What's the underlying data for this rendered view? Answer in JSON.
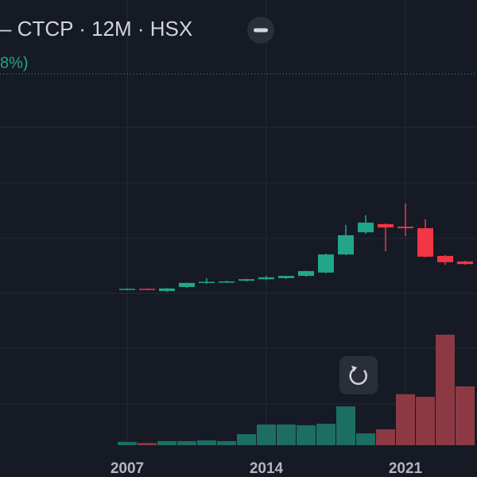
{
  "chart_data": {
    "type": "candlestick",
    "title": "– CTCP · 12M · HSX",
    "subtitle": "8%)",
    "categories": [
      "2007",
      null,
      null,
      null,
      null,
      null,
      null,
      "2014",
      null,
      null,
      null,
      null,
      null,
      null,
      "2021",
      null,
      null,
      null
    ],
    "open": [
      42.2,
      42.3,
      41.7,
      42.8,
      44.1,
      44.1,
      44.5,
      44.9,
      45.2,
      45.8,
      46.7,
      51.6,
      57.6,
      59.8,
      59.1,
      58.7,
      51.2,
      49.7
    ],
    "high": [
      42.4,
      42.4,
      42.5,
      43.9,
      45.2,
      44.5,
      45.0,
      45.8,
      45.8,
      47.2,
      51.8,
      59.6,
      62.2,
      60.0,
      65.4,
      61.1,
      51.4,
      49.9
    ],
    "low": [
      42.0,
      42.0,
      41.5,
      42.6,
      43.7,
      43.9,
      44.3,
      44.6,
      45.0,
      45.6,
      46.5,
      51.4,
      57.2,
      52.5,
      56.6,
      50.8,
      48.8,
      48.8
    ],
    "close": [
      42.3,
      42.1,
      42.4,
      43.9,
      44.2,
      44.3,
      44.9,
      45.4,
      45.8,
      47.1,
      51.6,
      56.8,
      60.2,
      58.9,
      58.7,
      51.0,
      49.5,
      49.0
    ],
    "volume": [
      0.9,
      0.6,
      1.1,
      1.1,
      1.3,
      1.1,
      3.0,
      5.6,
      5.6,
      5.4,
      5.8,
      10.5,
      3.2,
      4.3,
      13.8,
      13.1,
      29.9,
      15.9
    ],
    "up_color": "#22a68a",
    "down_color": "#f23645",
    "up_volume_color": "#1d6e62",
    "down_volume_color": "#8c3944",
    "ylim": [
      0,
      100
    ],
    "y2lim": [
      0,
      100
    ]
  }
}
